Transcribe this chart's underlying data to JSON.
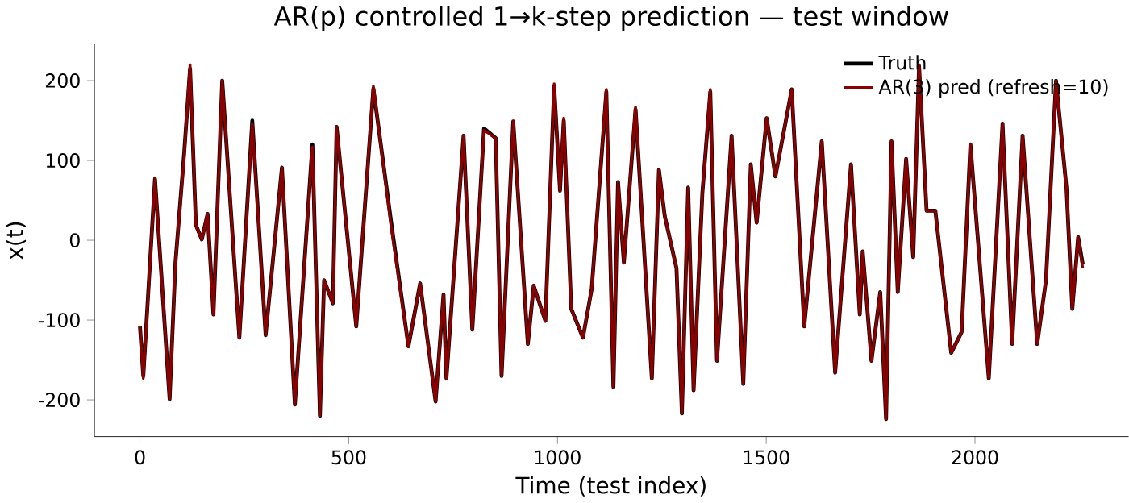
{
  "chart_data": {
    "type": "line",
    "title": "AR(p) controlled 1→k-step prediction — test window",
    "xlabel": "Time (test index)",
    "ylabel": "x(t)",
    "x": [
      0,
      8,
      36,
      71,
      85,
      106,
      120,
      134,
      148,
      162,
      176,
      197,
      238,
      269,
      301,
      340,
      371,
      413,
      431,
      441,
      462,
      471,
      518,
      559,
      601,
      643,
      671,
      708,
      727,
      734,
      775,
      796,
      824,
      852,
      866,
      894,
      929,
      943,
      971,
      992,
      1006,
      1015,
      1033,
      1061,
      1082,
      1117,
      1134,
      1145,
      1159,
      1187,
      1226,
      1243,
      1257,
      1285,
      1298,
      1313,
      1326,
      1347,
      1366,
      1382,
      1417,
      1445,
      1463,
      1477,
      1501,
      1522,
      1561,
      1591,
      1633,
      1665,
      1703,
      1724,
      1731,
      1752,
      1773,
      1787,
      1800,
      1815,
      1835,
      1852,
      1866,
      1884,
      1905,
      1943,
      1968,
      1989,
      2033,
      2066,
      2089,
      2114,
      2149,
      2170,
      2194,
      2219,
      2233,
      2247,
      2258
    ],
    "series": [
      {
        "name": "Truth",
        "color": "#000000",
        "values": [
          -108,
          -170,
          77,
          -199,
          -28,
          110,
          215,
          19,
          1,
          33,
          -93,
          200,
          -122,
          150,
          -119,
          91,
          -206,
          120,
          -220,
          -50,
          -79,
          142,
          -108,
          190,
          25,
          -133,
          -54,
          -202,
          -68,
          -173,
          131,
          -112,
          140,
          128,
          -170,
          149,
          -130,
          -57,
          -101,
          193,
          62,
          150,
          -86,
          -122,
          -61,
          186,
          -184,
          73,
          -28,
          164,
          -173,
          88,
          30,
          -35,
          -217,
          66,
          -188,
          59,
          186,
          -151,
          131,
          -180,
          95,
          22,
          153,
          80,
          189,
          -108,
          124,
          -166,
          95,
          -93,
          -14,
          -151,
          -65,
          -224,
          124,
          -65,
          102,
          -21,
          218,
          37,
          37,
          -141,
          -115,
          120,
          -173,
          146,
          -130,
          131,
          -130,
          -50,
          200,
          66,
          -86,
          4,
          -30
        ]
      },
      {
        "name": "AR(3) pred (refresh=10)",
        "color": "#8b0000",
        "values": [
          -108,
          -173,
          77,
          -199,
          -28,
          106,
          220,
          19,
          1,
          33,
          -93,
          200,
          -122,
          146,
          -119,
          91,
          -206,
          117,
          -220,
          -50,
          -79,
          142,
          -108,
          193,
          19,
          -133,
          -54,
          -202,
          -68,
          -173,
          131,
          -112,
          138,
          128,
          -170,
          149,
          -130,
          -57,
          -101,
          196,
          62,
          153,
          -86,
          -122,
          -61,
          189,
          -184,
          73,
          -28,
          167,
          -173,
          88,
          30,
          -35,
          -217,
          66,
          -188,
          59,
          189,
          -151,
          131,
          -180,
          95,
          22,
          153,
          80,
          189,
          -108,
          124,
          -166,
          95,
          -93,
          -14,
          -151,
          -65,
          -224,
          124,
          -65,
          102,
          -21,
          220,
          37,
          37,
          -141,
          -115,
          120,
          -173,
          146,
          -130,
          131,
          -130,
          -50,
          200,
          66,
          -86,
          4,
          -35
        ]
      }
    ],
    "xlim": [
      -109,
      2368
    ],
    "ylim": [
      -246,
      246
    ],
    "xticks": [
      0,
      500,
      1000,
      1500,
      2000
    ],
    "yticks": [
      -200,
      -100,
      0,
      100,
      200
    ],
    "legend": "top right",
    "grid": false
  }
}
